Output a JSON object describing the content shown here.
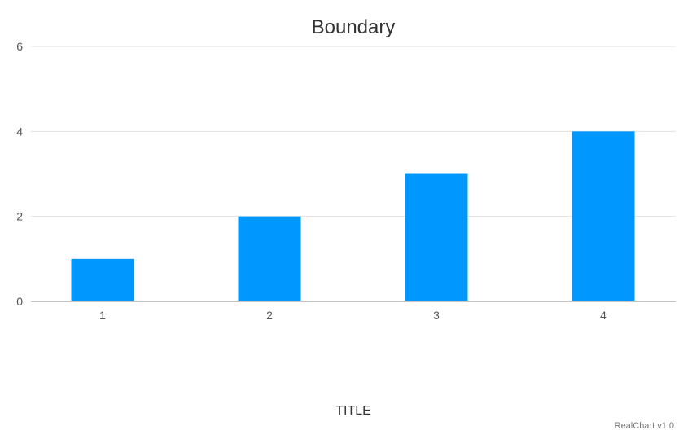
{
  "chart_data": {
    "type": "bar",
    "title": "Boundary",
    "xlabel": "TITLE",
    "ylabel": "",
    "x_type": "linear",
    "x": [
      1,
      2,
      3,
      4
    ],
    "categories": [
      "1",
      "2",
      "3",
      "4"
    ],
    "values": [
      1,
      2,
      3,
      4
    ],
    "ylim": [
      0,
      6
    ],
    "y_ticks": [
      0,
      2,
      4,
      6
    ],
    "grid": true,
    "bar_color": "#0098ff",
    "legend": "none"
  },
  "credits": {
    "text": "RealChart v1.0"
  }
}
